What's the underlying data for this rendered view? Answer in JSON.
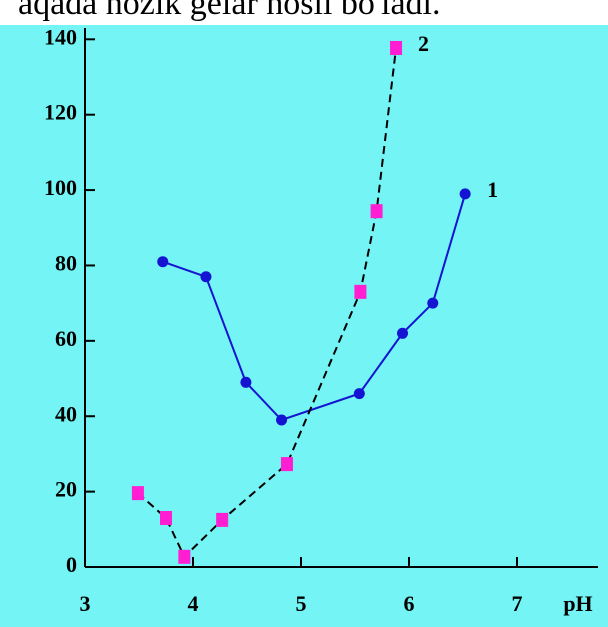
{
  "caption": "aqada nozik gelar hosil bo'ladi.",
  "chart_data": {
    "type": "line",
    "x_label": "pH",
    "xlim": [
      3,
      7.75
    ],
    "xticks": [
      3,
      4,
      5,
      6,
      7
    ],
    "ylim": [
      0,
      143
    ],
    "yticks": [
      0,
      20,
      40,
      60,
      80,
      100,
      120,
      140
    ],
    "series": [
      {
        "name": "1",
        "color": "#1414d2",
        "line_color": "#1414d2",
        "dashed": false,
        "marker": "circle",
        "x": [
          3.72,
          4.12,
          4.49,
          4.82,
          5.54,
          5.94,
          6.22,
          6.52
        ],
        "values": [
          81,
          77,
          49,
          39,
          46,
          62,
          70,
          99
        ]
      },
      {
        "name": "2",
        "color": "#ff1ed2",
        "line_color": "#000000",
        "dashed": true,
        "marker": "square",
        "x": [
          3.49,
          3.75,
          3.92,
          4.27,
          4.87,
          5.55,
          5.7,
          5.88
        ],
        "values": [
          19.6,
          13,
          2.7,
          12.5,
          27.3,
          73,
          94.4,
          137.7
        ]
      }
    ]
  }
}
